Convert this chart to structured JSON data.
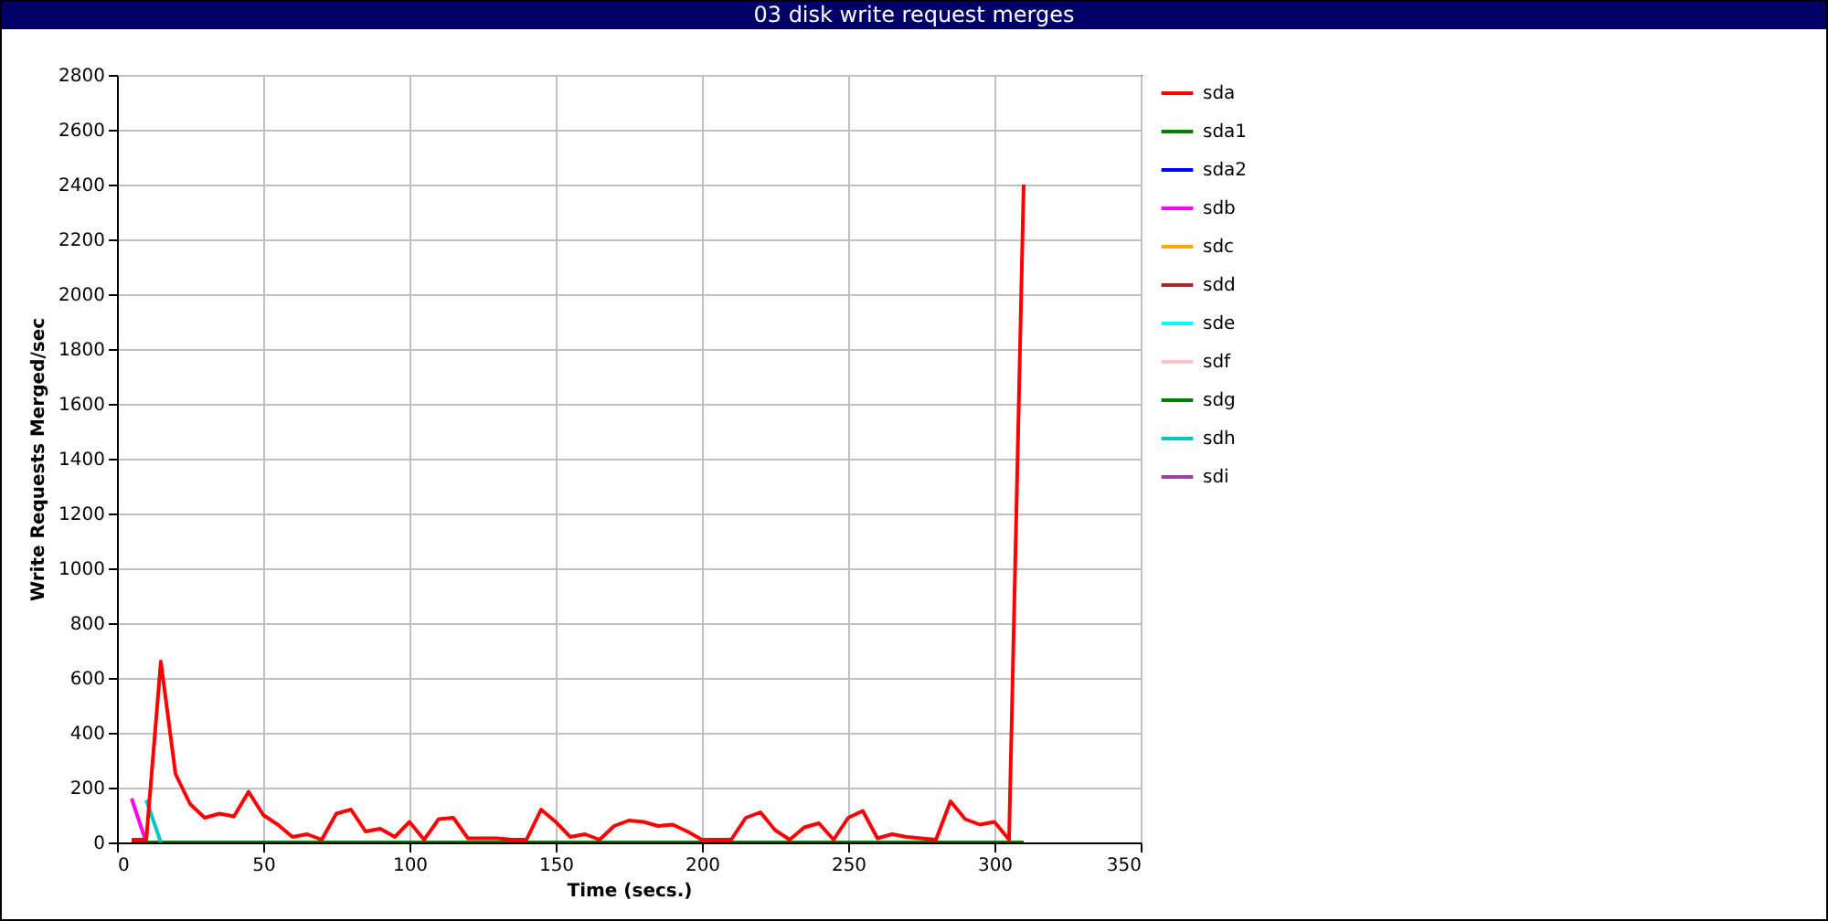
{
  "chart_data": {
    "type": "line",
    "title": "03 disk write request merges",
    "xlabel": "Time (secs.)",
    "ylabel": "Write Requests Merged/sec",
    "x": [
      5,
      10,
      15,
      20,
      25,
      30,
      35,
      40,
      45,
      50,
      55,
      60,
      65,
      70,
      75,
      80,
      85,
      90,
      95,
      100,
      105,
      110,
      115,
      120,
      125,
      130,
      135,
      140,
      145,
      150,
      155,
      160,
      165,
      170,
      175,
      180,
      185,
      190,
      195,
      200,
      205,
      210,
      215,
      220,
      225,
      230,
      235,
      240,
      245,
      250,
      255,
      260,
      265,
      270,
      275,
      280,
      285,
      290,
      295,
      300,
      305,
      310
    ],
    "xlim": [
      0,
      350
    ],
    "xticks": [
      0,
      50,
      100,
      150,
      200,
      250,
      300,
      350
    ],
    "ylim": [
      0,
      2800
    ],
    "yticks": [
      0,
      200,
      400,
      600,
      800,
      1000,
      1200,
      1400,
      1600,
      1800,
      2000,
      2200,
      2400,
      2600,
      2800
    ],
    "grid": true,
    "legend": "top right",
    "line_style": "solid",
    "marker": "none",
    "series": [
      {
        "name": "sda1",
        "color": "#008000",
        "values": [
          null,
          null,
          null,
          null,
          null,
          null,
          null,
          null,
          null,
          null,
          null,
          null,
          null,
          null,
          null,
          null,
          null,
          null,
          null,
          null,
          null,
          null,
          null,
          null,
          null,
          null,
          null,
          null,
          null,
          null,
          null,
          null,
          null,
          null,
          null,
          null,
          null,
          null,
          null,
          null,
          null,
          null,
          null,
          null,
          null,
          null,
          null,
          null,
          null,
          null,
          null,
          null,
          null,
          null,
          null,
          null,
          null,
          null,
          null,
          null,
          null,
          null
        ]
      },
      {
        "name": "sda2",
        "color": "#0000ff",
        "values": [
          null,
          null,
          null,
          null,
          null,
          null,
          null,
          null,
          null,
          null,
          null,
          null,
          null,
          null,
          null,
          null,
          null,
          null,
          null,
          null,
          null,
          null,
          null,
          null,
          null,
          null,
          null,
          null,
          null,
          null,
          null,
          null,
          null,
          null,
          null,
          null,
          null,
          null,
          null,
          null,
          null,
          null,
          null,
          null,
          null,
          null,
          null,
          null,
          null,
          null,
          null,
          null,
          null,
          null,
          null,
          null,
          null,
          null,
          null,
          null,
          null,
          null
        ]
      },
      {
        "name": "sdb",
        "color": "#ff00ff",
        "x": [
          5,
          10
        ],
        "values": [
          160,
          0
        ]
      },
      {
        "name": "sdc",
        "color": "#ffa500",
        "values": [
          null,
          null,
          null,
          null,
          null,
          null,
          null,
          null,
          null,
          null,
          null,
          null,
          null,
          null,
          null,
          null,
          null,
          null,
          null,
          null,
          null,
          null,
          null,
          null,
          null,
          null,
          null,
          null,
          null,
          null,
          null,
          null,
          null,
          null,
          null,
          null,
          null,
          null,
          null,
          null,
          null,
          null,
          null,
          null,
          null,
          null,
          null,
          null,
          null,
          null,
          null,
          null,
          null,
          null,
          null,
          null,
          null,
          null,
          null,
          null,
          null,
          null
        ]
      },
      {
        "name": "sdd",
        "color": "#a52a2a",
        "values": [
          null,
          null,
          null,
          null,
          null,
          null,
          null,
          null,
          null,
          null,
          null,
          null,
          null,
          null,
          null,
          null,
          null,
          null,
          null,
          null,
          null,
          null,
          null,
          null,
          null,
          null,
          null,
          null,
          null,
          null,
          null,
          null,
          null,
          null,
          null,
          null,
          null,
          null,
          null,
          null,
          null,
          null,
          null,
          null,
          null,
          null,
          null,
          null,
          null,
          null,
          null,
          null,
          null,
          null,
          null,
          null,
          null,
          null,
          null,
          null,
          null,
          null
        ]
      },
      {
        "name": "sde",
        "color": "#00ffff",
        "values": [
          null,
          null,
          null,
          null,
          null,
          null,
          null,
          null,
          null,
          null,
          null,
          null,
          null,
          null,
          null,
          null,
          null,
          null,
          null,
          null,
          null,
          null,
          null,
          null,
          null,
          null,
          null,
          null,
          null,
          null,
          null,
          null,
          null,
          null,
          null,
          null,
          null,
          null,
          null,
          null,
          null,
          null,
          null,
          null,
          null,
          null,
          null,
          null,
          null,
          null,
          null,
          null,
          null,
          null,
          null,
          null,
          null,
          null,
          null,
          null,
          null,
          null
        ]
      },
      {
        "name": "sdf",
        "color": "#ffc0cb",
        "values": [
          null,
          null,
          null,
          null,
          null,
          null,
          null,
          null,
          null,
          null,
          null,
          null,
          null,
          null,
          null,
          null,
          null,
          null,
          null,
          null,
          null,
          null,
          null,
          null,
          null,
          null,
          null,
          null,
          null,
          null,
          null,
          null,
          null,
          null,
          null,
          null,
          null,
          null,
          null,
          null,
          null,
          null,
          null,
          null,
          null,
          null,
          null,
          null,
          null,
          null,
          null,
          null,
          null,
          null,
          null,
          null,
          null,
          null,
          null,
          null,
          null,
          null
        ]
      },
      {
        "name": "sdg",
        "color": "#008000",
        "values": [
          0,
          0,
          0,
          0,
          0,
          0,
          0,
          0,
          0,
          0,
          0,
          0,
          0,
          0,
          0,
          0,
          0,
          0,
          0,
          0,
          0,
          0,
          0,
          0,
          0,
          0,
          0,
          0,
          0,
          0,
          0,
          0,
          0,
          0,
          0,
          0,
          0,
          0,
          0,
          0,
          0,
          0,
          0,
          0,
          0,
          0,
          0,
          0,
          0,
          0,
          0,
          0,
          0,
          0,
          0,
          0,
          0,
          0,
          0,
          0,
          0,
          0
        ]
      },
      {
        "name": "sdh",
        "color": "#00c8c8",
        "x": [
          10,
          15
        ],
        "values": [
          155,
          0
        ]
      },
      {
        "name": "sdi",
        "color": "#a040a0",
        "values": [
          null,
          null,
          null,
          null,
          null,
          null,
          null,
          null,
          null,
          null,
          null,
          null,
          null,
          null,
          null,
          null,
          null,
          null,
          null,
          null,
          null,
          null,
          null,
          null,
          null,
          null,
          null,
          null,
          null,
          null,
          null,
          null,
          null,
          null,
          null,
          null,
          null,
          null,
          null,
          null,
          null,
          null,
          null,
          null,
          null,
          null,
          null,
          null,
          null,
          null,
          null,
          null,
          null,
          null,
          null,
          null,
          null,
          null,
          null,
          null,
          null,
          null
        ]
      },
      {
        "name": "sda",
        "color": "#ff0000",
        "values": [
          10,
          10,
          660,
          250,
          140,
          90,
          105,
          95,
          185,
          100,
          65,
          20,
          30,
          10,
          105,
          120,
          40,
          50,
          20,
          75,
          10,
          85,
          90,
          15,
          15,
          15,
          10,
          10,
          120,
          75,
          20,
          30,
          10,
          60,
          80,
          75,
          60,
          65,
          40,
          10,
          10,
          10,
          90,
          110,
          45,
          10,
          55,
          70,
          10,
          90,
          115,
          15,
          30,
          20,
          15,
          10,
          150,
          85,
          65,
          75,
          10,
          2400
        ]
      }
    ]
  }
}
